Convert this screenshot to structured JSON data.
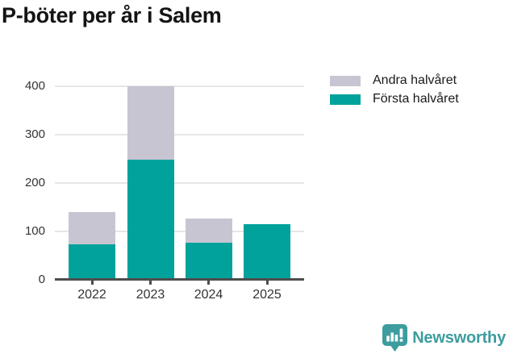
{
  "title": "P-böter per år i Salem",
  "colors": {
    "first_half": "#00a29b",
    "second_half": "#c8c5d2",
    "grid": "#e6e6e6",
    "axis": "#4d4d4d",
    "brand_teal": "#3d9c9e"
  },
  "legend": [
    {
      "label": "Andra halvåret",
      "color": "#c8c5d2"
    },
    {
      "label": "Första halvåret",
      "color": "#00a29b"
    }
  ],
  "chart_data": {
    "type": "bar",
    "stacked": true,
    "title": "P-böter per år i Salem",
    "categories": [
      "2022",
      "2023",
      "2024",
      "2025"
    ],
    "series": [
      {
        "name": "Första halvåret",
        "color": "#00a29b",
        "values": [
          73,
          248,
          77,
          115
        ]
      },
      {
        "name": "Andra halvåret",
        "color": "#c8c5d2",
        "values": [
          67,
          152,
          50,
          0
        ]
      }
    ],
    "totals": [
      140,
      400,
      127,
      115
    ],
    "xlabel": "",
    "ylabel": "",
    "ylim": [
      0,
      400
    ],
    "yticks": [
      0,
      100,
      200,
      300,
      400
    ],
    "grid": true,
    "legend_position": "top-right"
  },
  "footer": {
    "brand": "Newsworthy"
  }
}
